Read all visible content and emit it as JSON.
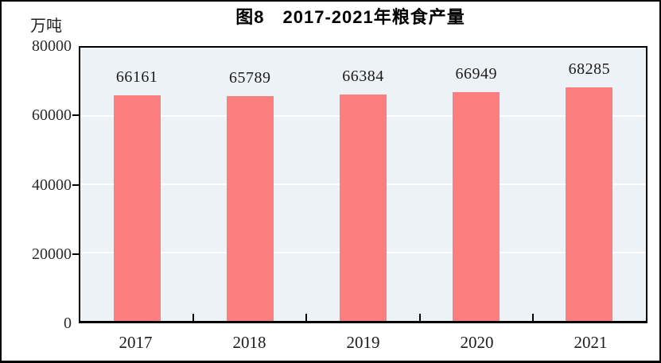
{
  "figure": {
    "title": "图8　2017-2021年粮食产量",
    "unit_label": "万吨",
    "frame_color": "#000000",
    "background": "#ffffff"
  },
  "chart_data": {
    "type": "bar",
    "title": "图8　2017-2021年粮食产量",
    "unit": "万吨",
    "categories": [
      "2017",
      "2018",
      "2019",
      "2020",
      "2021"
    ],
    "values": [
      66161,
      65789,
      66384,
      66949,
      68285
    ],
    "value_labels": [
      "66161",
      "65789",
      "66384",
      "66949",
      "68285"
    ],
    "xlabel": "",
    "ylabel": "万吨",
    "ylim": [
      0,
      80000
    ],
    "yticks": [
      0,
      20000,
      40000,
      60000,
      80000
    ],
    "grid": "horizontal",
    "legend_position": "none",
    "bar_color": "#FD7E7E",
    "plot_background": "#EDF2F6",
    "gridline_color": "#FFFFFF",
    "axis_color": "#000000"
  }
}
